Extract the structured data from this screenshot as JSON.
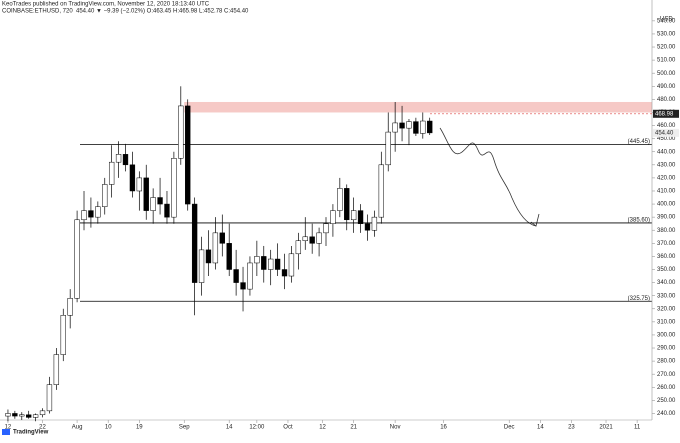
{
  "header": {
    "publisher": "KeoTrades published on TradingView.com, November 12, 2020 18:13:40 UTC",
    "symbol": "COINBASE:ETHUSD, 720",
    "quote": "454.40 ▼ −9.39 (−2.02%) O:463.45 H:465.98 L:452.78 C:454.40"
  },
  "chart_data": {
    "type": "candlestick",
    "x": [
      0,
      2,
      4,
      6,
      8,
      10,
      12,
      14,
      16,
      18,
      20,
      22,
      24,
      26,
      28,
      30,
      32,
      34,
      36,
      38,
      40,
      42,
      44,
      46,
      48,
      50,
      52,
      54,
      56,
      58,
      60,
      62,
      64,
      66,
      68,
      70,
      72,
      74,
      76,
      78,
      80,
      82,
      84,
      86,
      88,
      90,
      92,
      94,
      96,
      98,
      100,
      102,
      104,
      106,
      108,
      110,
      112,
      114,
      116,
      118,
      120,
      122
    ],
    "open": [
      238,
      240,
      238,
      239,
      237,
      239,
      242,
      262,
      285,
      315,
      328,
      388,
      395,
      390,
      398,
      415,
      432,
      438,
      430,
      410,
      420,
      395,
      405,
      400,
      390,
      435,
      475,
      400,
      340,
      365,
      355,
      378,
      370,
      350,
      340,
      335,
      355,
      360,
      350,
      358,
      350,
      345,
      362,
      372,
      375,
      370,
      378,
      385,
      395,
      412,
      388,
      395,
      385,
      380,
      390,
      430,
      455,
      462,
      458,
      463,
      454,
      463.45
    ],
    "high": [
      243,
      242,
      241,
      242,
      240,
      244,
      268,
      290,
      320,
      335,
      395,
      410,
      405,
      402,
      420,
      445,
      448,
      446,
      440,
      425,
      430,
      412,
      420,
      410,
      440,
      490,
      480,
      405,
      375,
      380,
      390,
      392,
      385,
      365,
      352,
      360,
      372,
      368,
      365,
      370,
      362,
      368,
      378,
      390,
      385,
      382,
      390,
      400,
      420,
      415,
      405,
      400,
      392,
      395,
      440,
      470,
      478,
      475,
      465,
      466,
      470,
      465.98
    ],
    "low": [
      234,
      236,
      235,
      236,
      234,
      237,
      240,
      258,
      280,
      305,
      325,
      380,
      382,
      385,
      392,
      405,
      420,
      425,
      405,
      395,
      388,
      385,
      392,
      385,
      385,
      430,
      395,
      315,
      330,
      345,
      350,
      360,
      345,
      330,
      318,
      330,
      345,
      340,
      338,
      345,
      335,
      340,
      350,
      365,
      362,
      360,
      368,
      375,
      390,
      380,
      378,
      378,
      372,
      375,
      385,
      425,
      440,
      448,
      445,
      452,
      450,
      452.78
    ],
    "close": [
      240,
      238,
      239,
      237,
      239,
      242,
      262,
      285,
      315,
      328,
      388,
      395,
      390,
      398,
      415,
      432,
      438,
      430,
      410,
      420,
      395,
      405,
      400,
      390,
      435,
      475,
      400,
      340,
      365,
      355,
      378,
      370,
      350,
      340,
      335,
      355,
      360,
      350,
      358,
      350,
      345,
      362,
      372,
      375,
      370,
      378,
      385,
      395,
      412,
      388,
      395,
      385,
      380,
      390,
      430,
      455,
      462,
      458,
      463,
      454,
      463.45,
      454.4
    ],
    "up_color": "#ffffff",
    "down_color": "#000000",
    "edge_color": "#000000",
    "xlim": [
      -2.3,
      186.3
    ],
    "xticks": [
      {
        "value": 0,
        "label": "12"
      },
      {
        "value": 10,
        "label": "22"
      },
      {
        "value": 20,
        "label": "Aug"
      },
      {
        "value": 29,
        "label": "10"
      },
      {
        "value": 38,
        "label": "19"
      },
      {
        "value": 51,
        "label": "Sep"
      },
      {
        "value": 64,
        "label": "14"
      },
      {
        "value": 72,
        "label": "12:00"
      },
      {
        "value": 81,
        "label": "Oct"
      },
      {
        "value": 91,
        "label": "12"
      },
      {
        "value": 100,
        "label": "21"
      },
      {
        "value": 112,
        "label": "Nov"
      },
      {
        "value": 126,
        "label": "16"
      },
      {
        "value": 145,
        "label": "Dec"
      },
      {
        "value": 154,
        "label": "14"
      },
      {
        "value": 163,
        "label": "23"
      },
      {
        "value": 173,
        "label": "2021"
      },
      {
        "value": 182,
        "label": "11"
      }
    ],
    "ylim": [
      235,
      546
    ],
    "yticks": [
      {
        "value": 240,
        "label": "240.00"
      },
      {
        "value": 250,
        "label": "250.00"
      },
      {
        "value": 260,
        "label": "260.00"
      },
      {
        "value": 270,
        "label": "270.00"
      },
      {
        "value": 280,
        "label": "280.00"
      },
      {
        "value": 290,
        "label": "290.00"
      },
      {
        "value": 300,
        "label": "300.00"
      },
      {
        "value": 310,
        "label": "310.00"
      },
      {
        "value": 320,
        "label": "320.00"
      },
      {
        "value": 330,
        "label": "330.00"
      },
      {
        "value": 340,
        "label": "340.00"
      },
      {
        "value": 350,
        "label": "350.00"
      },
      {
        "value": 360,
        "label": "360.00"
      },
      {
        "value": 370,
        "label": "370.00"
      },
      {
        "value": 380,
        "label": "380.00"
      },
      {
        "value": 390,
        "label": "390.00"
      },
      {
        "value": 400,
        "label": "400.00"
      },
      {
        "value": 410,
        "label": "410.00"
      },
      {
        "value": 420,
        "label": "420.00"
      },
      {
        "value": 430,
        "label": "430.00"
      },
      {
        "value": 440,
        "label": "440.00"
      },
      {
        "value": 450,
        "label": "450.00"
      },
      {
        "value": 460,
        "label": "460.00"
      },
      {
        "value": 470,
        "label": "470.00"
      },
      {
        "value": 480,
        "label": "480.00"
      },
      {
        "value": 490,
        "label": "490.00"
      },
      {
        "value": 500,
        "label": "500.00"
      },
      {
        "value": 510,
        "label": "510.00"
      },
      {
        "value": 520,
        "label": "520.00"
      },
      {
        "value": 530,
        "label": "530.00"
      },
      {
        "value": 540,
        "label": "540.00"
      }
    ],
    "y_axis_label": "USD",
    "levels": [
      {
        "value": 445.45,
        "label": "(445.45)"
      },
      {
        "value": 385.6,
        "label": "(385.60)"
      },
      {
        "value": 325.75,
        "label": "(325.75)"
      }
    ],
    "zone": [
      470,
      478
    ],
    "zone_color": "#f6c9c6",
    "price_labels": [
      {
        "value": 468.98,
        "label": "468.98"
      },
      {
        "value": 454.4,
        "label": "454.40"
      }
    ]
  },
  "footer": {
    "brand": "TradingView"
  }
}
